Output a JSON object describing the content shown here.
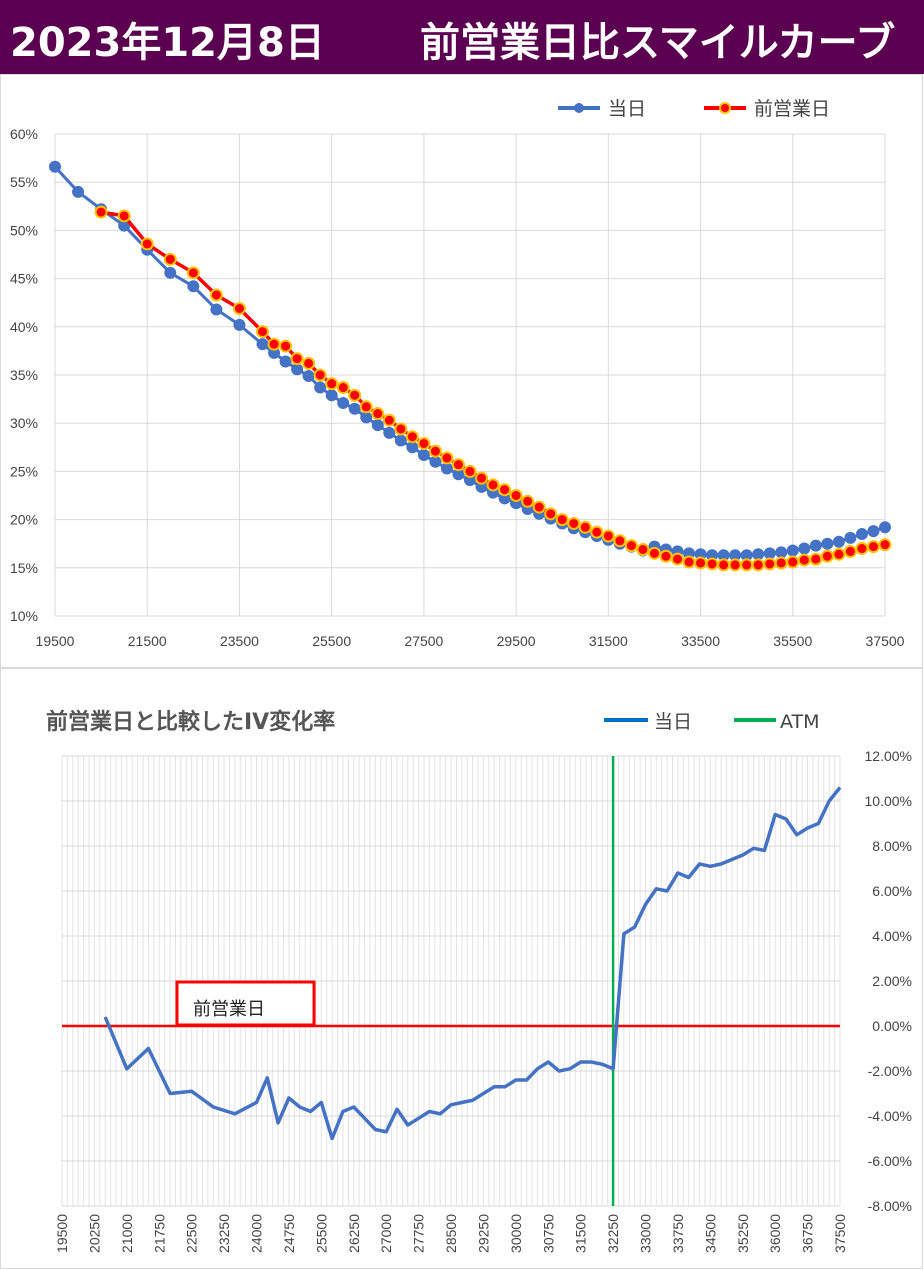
{
  "header": {
    "date": "2023年12月8日",
    "title": "前営業日比スマイルカーブ"
  },
  "colors": {
    "header_bg": "#5b0050",
    "today": "#4472c4",
    "prev": "#ff0000",
    "atm": "#00b050"
  },
  "chart_data": [
    {
      "type": "line",
      "x_ticks": [
        "19500",
        "21500",
        "23500",
        "25500",
        "27500",
        "29500",
        "31500",
        "33500",
        "35500",
        "37500"
      ],
      "y_ticks": [
        "60%",
        "55%",
        "50%",
        "45%",
        "40%",
        "35%",
        "30%",
        "25%",
        "20%",
        "15%",
        "10%"
      ],
      "xlim": [
        19500,
        37500
      ],
      "ylim": [
        10,
        60
      ],
      "grid": true,
      "legend": "top-right",
      "series": [
        {
          "name": "当日",
          "x": [
            19500,
            20000,
            20500,
            21000,
            21500,
            22000,
            22500,
            23000,
            23500,
            24000,
            24250,
            24500,
            24750,
            25000,
            25250,
            25500,
            25750,
            26000,
            26250,
            26500,
            26750,
            27000,
            27250,
            27500,
            27750,
            28000,
            28250,
            28500,
            28750,
            29000,
            29250,
            29500,
            29750,
            30000,
            30250,
            30500,
            30750,
            31000,
            31250,
            31500,
            31750,
            32000,
            32250,
            32500,
            32750,
            33000,
            33250,
            33500,
            33750,
            34000,
            34250,
            34500,
            34750,
            35000,
            35250,
            35500,
            35750,
            36000,
            36250,
            36500,
            36750,
            37000,
            37250,
            37500
          ],
          "values": [
            56.6,
            54.0,
            52.2,
            50.5,
            48.0,
            45.6,
            44.2,
            41.8,
            40.2,
            38.2,
            37.3,
            36.4,
            35.6,
            34.9,
            33.7,
            32.9,
            32.1,
            31.5,
            30.6,
            29.8,
            29.0,
            28.2,
            27.5,
            26.7,
            26.0,
            25.3,
            24.7,
            24.1,
            23.4,
            22.8,
            22.2,
            21.7,
            21.1,
            20.6,
            20.1,
            19.6,
            19.1,
            18.7,
            18.3,
            17.9,
            17.5,
            17.2,
            16.8,
            17.2,
            16.9,
            16.7,
            16.5,
            16.4,
            16.3,
            16.3,
            16.3,
            16.3,
            16.4,
            16.5,
            16.6,
            16.8,
            17.0,
            17.3,
            17.5,
            17.7,
            18.1,
            18.5,
            18.8,
            19.2
          ]
        },
        {
          "name": "前営業日",
          "x": [
            20500,
            21000,
            21500,
            22000,
            22500,
            23000,
            23500,
            24000,
            24250,
            24500,
            24750,
            25000,
            25250,
            25500,
            25750,
            26000,
            26250,
            26500,
            26750,
            27000,
            27250,
            27500,
            27750,
            28000,
            28250,
            28500,
            28750,
            29000,
            29250,
            29500,
            29750,
            30000,
            30250,
            30500,
            30750,
            31000,
            31250,
            31500,
            31750,
            32000,
            32250,
            32500,
            32750,
            33000,
            33250,
            33500,
            33750,
            34000,
            34250,
            34500,
            34750,
            35000,
            35250,
            35500,
            35750,
            36000,
            36250,
            36500,
            36750,
            37000,
            37250,
            37500
          ],
          "values": [
            51.9,
            51.5,
            48.6,
            47.0,
            45.6,
            43.3,
            41.9,
            39.5,
            38.2,
            38.0,
            36.7,
            36.2,
            35.0,
            34.1,
            33.7,
            32.9,
            31.7,
            31.0,
            30.3,
            29.4,
            28.6,
            27.9,
            27.1,
            26.4,
            25.7,
            25.0,
            24.3,
            23.6,
            23.1,
            22.5,
            21.9,
            21.3,
            20.6,
            20.0,
            19.6,
            19.2,
            18.7,
            18.3,
            17.8,
            17.3,
            16.9,
            16.5,
            16.2,
            15.9,
            15.6,
            15.5,
            15.4,
            15.3,
            15.3,
            15.3,
            15.3,
            15.4,
            15.5,
            15.6,
            15.8,
            15.9,
            16.2,
            16.4,
            16.7,
            17.0,
            17.2,
            17.4
          ]
        }
      ]
    },
    {
      "type": "line",
      "title": "前営業日と比較したIV変化率",
      "x_ticks": [
        "19500",
        "20250",
        "21000",
        "21750",
        "22500",
        "23250",
        "24000",
        "24750",
        "25500",
        "26250",
        "27000",
        "27750",
        "28500",
        "29250",
        "30000",
        "30750",
        "31500",
        "32250",
        "33000",
        "33750",
        "34500",
        "35250",
        "36000",
        "36750",
        "37500"
      ],
      "y_ticks": [
        "12.00%",
        "10.00%",
        "8.00%",
        "6.00%",
        "4.00%",
        "2.00%",
        "0.00%",
        "-2.00%",
        "-4.00%",
        "-6.00%",
        "-8.00%"
      ],
      "xlim": [
        19500,
        37500
      ],
      "ylim": [
        -8,
        12
      ],
      "grid": true,
      "legend": "top-right",
      "annotation": "前営業日",
      "atm": 32250,
      "series": [
        {
          "name": "当日",
          "x": [
            20500,
            21000,
            21500,
            22000,
            22500,
            23000,
            23500,
            24000,
            24250,
            24500,
            24750,
            25000,
            25250,
            25500,
            25750,
            26000,
            26250,
            26500,
            26750,
            27000,
            27250,
            27500,
            27750,
            28000,
            28250,
            28500,
            28750,
            29000,
            29250,
            29500,
            29750,
            30000,
            30250,
            30500,
            30750,
            31000,
            31250,
            31500,
            31750,
            32000,
            32250,
            32500,
            32750,
            33000,
            33250,
            33500,
            33750,
            34000,
            34250,
            34500,
            34750,
            35000,
            35250,
            35500,
            35750,
            36000,
            36250,
            36500,
            36750,
            37000,
            37250,
            37500
          ],
          "values": [
            0.4,
            -1.9,
            -1.0,
            -3.0,
            -2.9,
            -3.6,
            -3.9,
            -3.4,
            -2.3,
            -4.3,
            -3.2,
            -3.6,
            -3.8,
            -3.4,
            -5.0,
            -3.8,
            -3.6,
            -4.1,
            -4.6,
            -4.7,
            -3.7,
            -4.4,
            -4.1,
            -3.8,
            -3.9,
            -3.5,
            -3.4,
            -3.3,
            -3.0,
            -2.7,
            -2.7,
            -2.4,
            -2.4,
            -1.9,
            -1.6,
            -2.0,
            -1.9,
            -1.6,
            -1.6,
            -1.7,
            -1.9,
            4.1,
            4.4,
            5.4,
            6.1,
            6.0,
            6.8,
            6.6,
            7.2,
            7.1,
            7.2,
            7.4,
            7.6,
            7.9,
            7.8,
            9.4,
            9.2,
            8.5,
            8.8,
            9.0,
            10.0,
            10.6
          ]
        },
        {
          "name": "前営業日",
          "x": [
            19500,
            37500
          ],
          "values": [
            0,
            0
          ]
        },
        {
          "name": "ATM",
          "x": [
            32250,
            32250
          ],
          "values": [
            -8,
            12
          ]
        }
      ]
    }
  ]
}
